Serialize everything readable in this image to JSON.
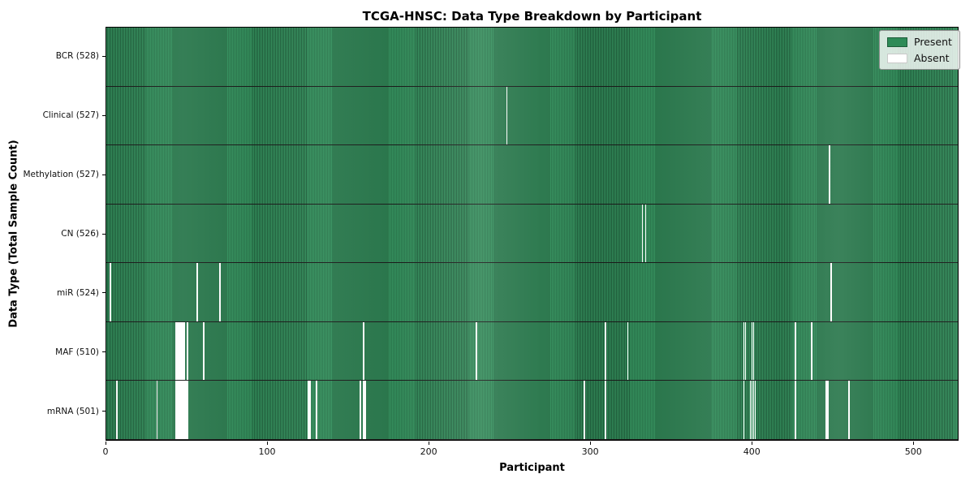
{
  "chart_data": {
    "type": "heatmap",
    "title": "TCGA-HNSC: Data Type Breakdown by Participant",
    "xlabel": "Participant",
    "ylabel": "Data Type (Total Sample Count)",
    "x_ticks": [
      0,
      100,
      200,
      300,
      400,
      500
    ],
    "n_participants": 528,
    "grid": false,
    "legend_position": "upper right",
    "colors": {
      "present": "#2e8b57",
      "stripe_light": "#36925f",
      "stripe_dark": "#1f5e3b",
      "absent": "#ffffff",
      "row_divider": "#1b1b1b"
    },
    "legend": [
      {
        "label": "Present",
        "color": "#2e8b57",
        "edge": "#1d5c39"
      },
      {
        "label": "Absent",
        "color": "#ffffff",
        "edge": "#c8c8c8"
      }
    ],
    "rows": [
      {
        "label": "BCR (528)",
        "total": 528,
        "absent_participants": []
      },
      {
        "label": "Clinical (527)",
        "total": 527,
        "absent_participants": [
          248
        ]
      },
      {
        "label": "Methylation (527)",
        "total": 527,
        "absent_participants": [
          448
        ]
      },
      {
        "label": "CN (526)",
        "total": 526,
        "absent_participants": [
          332,
          334
        ]
      },
      {
        "label": "miR (524)",
        "total": 524,
        "absent_participants": [
          2,
          56,
          70,
          449
        ]
      },
      {
        "label": "MAF (510)",
        "total": 510,
        "absent_participants": [
          43,
          44,
          45,
          46,
          47,
          48,
          50,
          60,
          159,
          229,
          309,
          323,
          395,
          396,
          400,
          401,
          427,
          437
        ]
      },
      {
        "label": "mRNA (501)",
        "total": 501,
        "absent_participants": [
          6,
          31,
          43,
          44,
          45,
          46,
          47,
          48,
          49,
          50,
          125,
          126,
          130,
          157,
          159,
          160,
          296,
          309,
          395,
          399,
          400,
          401,
          402,
          427,
          446,
          447,
          460
        ]
      }
    ]
  }
}
